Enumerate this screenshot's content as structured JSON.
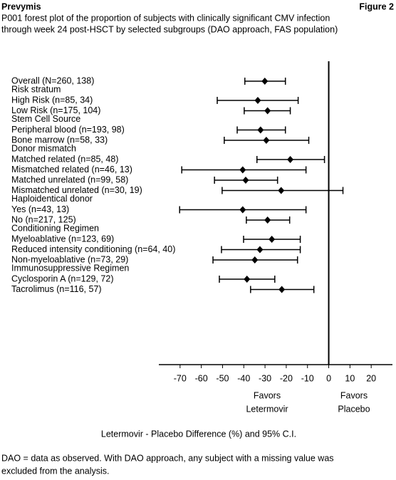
{
  "header": {
    "brand": "Prevymis",
    "figure": "Figure 2"
  },
  "chart_data": {
    "type": "forest",
    "title": [
      "P001 forest plot of the proportion of subjects with clinically significant CMV infection",
      "through week 24 post-HSCT by selected subgroups  (DAO approach, FAS population)"
    ],
    "groups": [
      {
        "rows": [
          {
            "label": "Overall (N=260, 138)",
            "value": -30.1,
            "low": -39.5,
            "high": -20.4
          }
        ]
      },
      {
        "title": "Risk stratum",
        "rows": [
          {
            "label": "High Risk (n=85, 34)",
            "value": -33.4,
            "low": -52.5,
            "high": -14.4
          },
          {
            "label": "Low Risk  (n=175, 104)",
            "value": -28.8,
            "low": -39.8,
            "high": -18.1
          }
        ]
      },
      {
        "title": "Stem Cell Source",
        "rows": [
          {
            "label": "Peripheral blood (n=193, 98)",
            "value": -32.1,
            "low": -43.1,
            "high": -20.4
          },
          {
            "label": "Bone marrow (n=58, 33)",
            "value": -29.4,
            "low": -49.2,
            "high": -9.4
          }
        ]
      },
      {
        "title": "Donor mismatch",
        "rows": [
          {
            "label": "Matched related (n=85, 48)",
            "value": -18.1,
            "low": -33.8,
            "high": -2.0
          },
          {
            "label": "Mismatched related (n=46, 13)",
            "value": -40.5,
            "low": -69.2,
            "high": -10.7
          },
          {
            "label": "Matched unrelated (n=99, 58)",
            "value": -39.1,
            "low": -53.8,
            "high": -24.1
          },
          {
            "label": "Mismatched unrelated (n=30, 19)",
            "value": -22.4,
            "low": -50.2,
            "high": 6.7
          }
        ]
      },
      {
        "title": "Haploidentical donor",
        "rows": [
          {
            "label": "Yes (n=43, 13)",
            "value": -40.5,
            "low": -70.2,
            "high": -10.7
          },
          {
            "label": "No (n=217, 125)",
            "value": -28.8,
            "low": -38.8,
            "high": -18.4
          }
        ]
      },
      {
        "title": "Conditioning Regimen",
        "rows": [
          {
            "label": "Myeloablative (n=123, 69)",
            "value": -26.8,
            "low": -40.1,
            "high": -13.4
          },
          {
            "label": "Reduced intensity conditioning (n=64, 40)",
            "value": -32.4,
            "low": -50.5,
            "high": -13.4
          },
          {
            "label": "Non-myeloablative (n=73, 29)",
            "value": -34.8,
            "low": -54.5,
            "high": -14.7
          }
        ]
      },
      {
        "title": "Immunosuppressive Regimen",
        "rows": [
          {
            "label": "Cyclosporin A (n=129, 72)",
            "value": -38.5,
            "low": -51.5,
            "high": -25.4
          },
          {
            "label": "Tacrolimus (n=116, 57)",
            "value": -22.1,
            "low": -36.8,
            "high": -7.0
          }
        ]
      }
    ],
    "xlim": [
      -80,
      30
    ],
    "xticks": [
      -70,
      -60,
      -50,
      -40,
      -30,
      -20,
      -10,
      0,
      10,
      20
    ],
    "favors_left": [
      "Favors",
      "Letermovir"
    ],
    "favors_right": [
      "Favors",
      "Placebo"
    ],
    "x_label": "Letermovir - Placebo Difference (%) and 95% C.I."
  },
  "footnote": [
    "DAO = data as observed. With DAO approach, any subject with a missing value was",
    "excluded from the analysis."
  ]
}
